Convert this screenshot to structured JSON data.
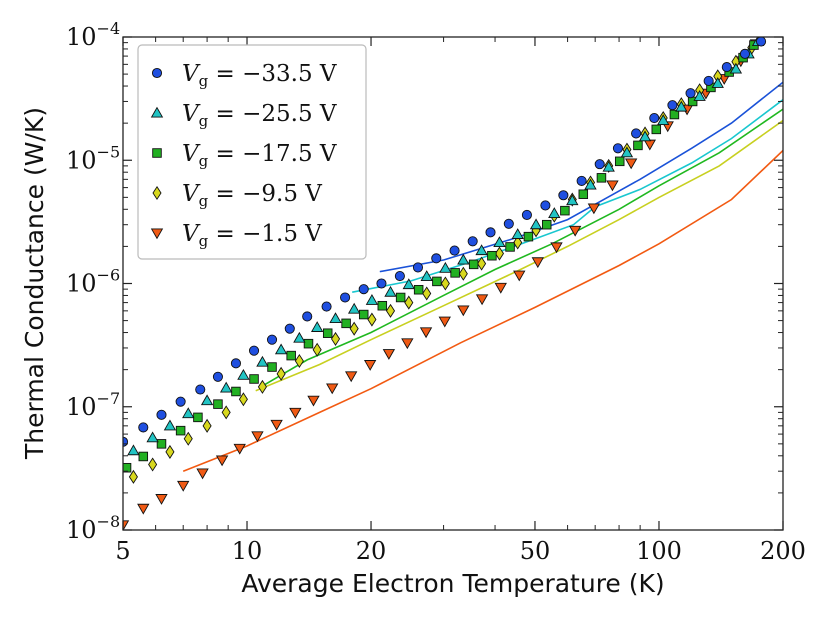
{
  "chart_data": {
    "type": "scatter",
    "xlabel": "Average Electron Temperature (K)",
    "ylabel": "Thermal Conductance (W/K)",
    "xscale": "log",
    "yscale": "log",
    "xlim": [
      5,
      200
    ],
    "ylim": [
      1e-08,
      0.0001
    ],
    "x_ticks": [
      {
        "value": 5,
        "label": "5"
      },
      {
        "value": 10,
        "label": "10"
      },
      {
        "value": 20,
        "label": "20"
      },
      {
        "value": 50,
        "label": "50"
      },
      {
        "value": 100,
        "label": "100"
      },
      {
        "value": 200,
        "label": "200"
      }
    ],
    "y_ticks": [
      {
        "value": 1e-08,
        "base": "10",
        "exp": "−8"
      },
      {
        "value": 1e-07,
        "base": "10",
        "exp": "−7"
      },
      {
        "value": 1e-06,
        "base": "10",
        "exp": "−6"
      },
      {
        "value": 1e-05,
        "base": "10",
        "exp": "−5"
      },
      {
        "value": 0.0001,
        "base": "10",
        "exp": "−4"
      }
    ],
    "legend_position": "top-left",
    "grid": false,
    "series": [
      {
        "name": "V_g = −33.5 V",
        "legend_value": "−33.5 V",
        "marker": "circle",
        "color": "#1f4fe0",
        "points": [
          [
            5,
            5.2e-08
          ],
          [
            5.6,
            6.8e-08
          ],
          [
            6.2,
            8.6e-08
          ],
          [
            6.9,
            1.1e-07
          ],
          [
            7.7,
            1.38e-07
          ],
          [
            8.5,
            1.75e-07
          ],
          [
            9.4,
            2.25e-07
          ],
          [
            10.4,
            2.85e-07
          ],
          [
            11.5,
            3.5e-07
          ],
          [
            12.7,
            4.3e-07
          ],
          [
            14.0,
            5.4e-07
          ],
          [
            15.6,
            6.5e-07
          ],
          [
            17.3,
            7.7e-07
          ],
          [
            19.2,
            9e-07
          ],
          [
            21.2,
            1e-06
          ],
          [
            23.5,
            1.15e-06
          ],
          [
            26.0,
            1.35e-06
          ],
          [
            28.8,
            1.6e-06
          ],
          [
            31.9,
            1.85e-06
          ],
          [
            35.3,
            2.2e-06
          ],
          [
            39.0,
            2.6e-06
          ],
          [
            43.2,
            3.05e-06
          ],
          [
            47.8,
            3.6e-06
          ],
          [
            53.0,
            4.3e-06
          ],
          [
            58.6,
            5.2e-06
          ],
          [
            64.9,
            6.8e-06
          ],
          [
            71.8,
            9.3e-06
          ],
          [
            79.5,
            1.25e-05
          ],
          [
            88.0,
            1.65e-05
          ],
          [
            97.4,
            2.2e-05
          ],
          [
            107.8,
            2.8e-05
          ],
          [
            119.3,
            3.5e-05
          ],
          [
            132.0,
            4.4e-05
          ],
          [
            146.1,
            5.7e-05
          ],
          [
            161.7,
            7.3e-05
          ],
          [
            176.9,
            9.2e-05
          ]
        ],
        "theory": [
          [
            21,
            1.25e-06
          ],
          [
            30,
            1.55e-06
          ],
          [
            45,
            2.35e-06
          ],
          [
            60,
            3.3e-06
          ],
          [
            75,
            5e-06
          ],
          [
            90,
            7e-06
          ],
          [
            120,
            1.25e-05
          ],
          [
            150,
            2e-05
          ],
          [
            200,
            4.3e-05
          ]
        ],
        "theory_color": "#1a52d8"
      },
      {
        "name": "V_g = −25.5 V",
        "legend_value": "−25.5 V",
        "marker": "triangle-up",
        "color": "#22c4c4",
        "points": [
          [
            5.3,
            4.4e-08
          ],
          [
            5.9,
            5.6e-08
          ],
          [
            6.5,
            7e-08
          ],
          [
            7.2,
            8.8e-08
          ],
          [
            8.0,
            1.12e-07
          ],
          [
            8.9,
            1.42e-07
          ],
          [
            9.8,
            1.8e-07
          ],
          [
            10.9,
            2.3e-07
          ],
          [
            12.1,
            2.9e-07
          ],
          [
            13.4,
            3.6e-07
          ],
          [
            14.8,
            4.4e-07
          ],
          [
            16.4,
            5.2e-07
          ],
          [
            18.2,
            6.2e-07
          ],
          [
            20.1,
            7.3e-07
          ],
          [
            22.3,
            8.5e-07
          ],
          [
            24.7,
            9.8e-07
          ],
          [
            27.3,
            1.14e-06
          ],
          [
            30.3,
            1.33e-06
          ],
          [
            33.5,
            1.55e-06
          ],
          [
            37.1,
            1.85e-06
          ],
          [
            41.0,
            2.15e-06
          ],
          [
            45.4,
            2.5e-06
          ],
          [
            50.3,
            3e-06
          ],
          [
            55.7,
            3.7e-06
          ],
          [
            61.6,
            4.7e-06
          ],
          [
            68.2,
            6.3e-06
          ],
          [
            75.5,
            8.8e-06
          ],
          [
            83.6,
            1.15e-05
          ],
          [
            92.5,
            1.55e-05
          ],
          [
            102.4,
            2.1e-05
          ],
          [
            113.3,
            2.7e-05
          ],
          [
            125.5,
            3.3e-05
          ],
          [
            138.9,
            4.2e-05
          ],
          [
            153.7,
            5.5e-05
          ],
          [
            165.0,
            7.3e-05
          ],
          [
            174.0,
            9.2e-05
          ]
        ],
        "theory": [
          [
            18,
            8.5e-07
          ],
          [
            25,
            1.05e-06
          ],
          [
            35,
            1.5e-06
          ],
          [
            50,
            2.3e-06
          ],
          [
            62,
            3e-06
          ],
          [
            70,
            4.2e-06
          ],
          [
            90,
            5.8e-06
          ],
          [
            120,
            9.5e-06
          ],
          [
            150,
            1.5e-05
          ],
          [
            200,
            3.1e-05
          ]
        ],
        "theory_color": "#19c7cf"
      },
      {
        "name": "V_g = −17.5 V",
        "legend_value": "−17.5 V",
        "marker": "square",
        "color": "#22b022",
        "points": [
          [
            5.1,
            3.2e-08
          ],
          [
            5.6,
            3.95e-08
          ],
          [
            6.2,
            5e-08
          ],
          [
            6.9,
            6.4e-08
          ],
          [
            7.6,
            8.2e-08
          ],
          [
            8.5,
            1.05e-07
          ],
          [
            9.4,
            1.33e-07
          ],
          [
            10.4,
            1.68e-07
          ],
          [
            11.5,
            2.1e-07
          ],
          [
            12.8,
            2.6e-07
          ],
          [
            14.1,
            3.25e-07
          ],
          [
            15.7,
            3.95e-07
          ],
          [
            17.4,
            4.75e-07
          ],
          [
            19.2,
            5.6e-07
          ],
          [
            21.3,
            6.6e-07
          ],
          [
            23.6,
            7.7e-07
          ],
          [
            26.1,
            8.9e-07
          ],
          [
            28.9,
            1.04e-06
          ],
          [
            32.0,
            1.22e-06
          ],
          [
            35.5,
            1.43e-06
          ],
          [
            39.3,
            1.68e-06
          ],
          [
            43.5,
            1.98e-06
          ],
          [
            48.2,
            2.4e-06
          ],
          [
            53.4,
            3e-06
          ],
          [
            59.1,
            3.9e-06
          ],
          [
            65.5,
            5.3e-06
          ],
          [
            72.5,
            7.2e-06
          ],
          [
            80.3,
            9.8e-06
          ],
          [
            88.9,
            1.32e-05
          ],
          [
            98.5,
            1.78e-05
          ],
          [
            109.0,
            2.35e-05
          ],
          [
            120.7,
            3e-05
          ],
          [
            133.7,
            3.9e-05
          ],
          [
            148.0,
            5.2e-05
          ],
          [
            160.0,
            6.8e-05
          ],
          [
            170.0,
            8.6e-05
          ]
        ],
        "theory": [
          [
            11,
            1.5e-07
          ],
          [
            14,
            2.4e-07
          ],
          [
            20,
            4e-07
          ],
          [
            30,
            8e-07
          ],
          [
            40,
            1.3e-06
          ],
          [
            55,
            2.1e-06
          ],
          [
            65,
            2.8e-06
          ],
          [
            80,
            4e-06
          ],
          [
            100,
            6.2e-06
          ],
          [
            140,
            1.15e-05
          ],
          [
            200,
            2.6e-05
          ]
        ],
        "theory_color": "#20b820"
      },
      {
        "name": "V_g = −9.5 V",
        "legend_value": "−9.5 V",
        "marker": "diamond",
        "color": "#d8d81e",
        "points": [
          [
            5.3,
            2.7e-08
          ],
          [
            5.9,
            3.4e-08
          ],
          [
            6.5,
            4.3e-08
          ],
          [
            7.2,
            5.5e-08
          ],
          [
            8.0,
            7e-08
          ],
          [
            8.9,
            9e-08
          ],
          [
            9.8,
            1.15e-07
          ],
          [
            10.9,
            1.45e-07
          ],
          [
            12.1,
            1.85e-07
          ],
          [
            13.4,
            2.35e-07
          ],
          [
            14.8,
            2.9e-07
          ],
          [
            16.4,
            3.55e-07
          ],
          [
            18.2,
            4.3e-07
          ],
          [
            20.1,
            5.1e-07
          ],
          [
            22.3,
            6e-07
          ],
          [
            24.7,
            7e-07
          ],
          [
            27.3,
            8.3e-07
          ],
          [
            30.3,
            1e-06
          ],
          [
            33.5,
            1.2e-06
          ],
          [
            37.1,
            1.45e-06
          ],
          [
            41.0,
            1.75e-06
          ],
          [
            45.4,
            2.15e-06
          ],
          [
            50.3,
            2.7e-06
          ],
          [
            55.7,
            3.55e-06
          ],
          [
            61.6,
            4.8e-06
          ],
          [
            68.2,
            6.6e-06
          ],
          [
            75.5,
            9e-06
          ],
          [
            83.6,
            1.22e-05
          ],
          [
            92.5,
            1.65e-05
          ],
          [
            102.4,
            2.2e-05
          ],
          [
            113.3,
            2.85e-05
          ],
          [
            125.5,
            3.7e-05
          ],
          [
            138.9,
            4.8e-05
          ],
          [
            153.7,
            6.3e-05
          ],
          [
            168.0,
            8.2e-05
          ]
        ],
        "theory": [
          [
            10.5,
            1.35e-07
          ],
          [
            15,
            2.2e-07
          ],
          [
            20,
            3.5e-07
          ],
          [
            30,
            6.6e-07
          ],
          [
            45,
            1.25e-06
          ],
          [
            60,
            2e-06
          ],
          [
            80,
            3.3e-06
          ],
          [
            100,
            5e-06
          ],
          [
            140,
            9e-06
          ],
          [
            200,
            2.1e-05
          ]
        ],
        "theory_color": "#c8d020"
      },
      {
        "name": "V_g = −1.5 V",
        "legend_value": "−1.5 V",
        "marker": "triangle-down",
        "color": "#f05a14",
        "points": [
          [
            5.0,
            1.1e-08
          ],
          [
            5.6,
            1.5e-08
          ],
          [
            6.2,
            1.8e-08
          ],
          [
            7.0,
            2.3e-08
          ],
          [
            7.8,
            2.9e-08
          ],
          [
            8.7,
            3.7e-08
          ],
          [
            9.6,
            4.6e-08
          ],
          [
            10.6,
            5.8e-08
          ],
          [
            11.8,
            7.2e-08
          ],
          [
            13.1,
            9e-08
          ],
          [
            14.5,
            1.13e-07
          ],
          [
            16.1,
            1.42e-07
          ],
          [
            17.9,
            1.78e-07
          ],
          [
            19.9,
            2.2e-07
          ],
          [
            22.1,
            2.7e-07
          ],
          [
            24.5,
            3.3e-07
          ],
          [
            27.2,
            4.05e-07
          ],
          [
            30.2,
            4.95e-07
          ],
          [
            33.5,
            6.1e-07
          ],
          [
            37.2,
            7.5e-07
          ],
          [
            41.3,
            9.3e-07
          ],
          [
            45.8,
            1.17e-06
          ],
          [
            50.8,
            1.5e-06
          ],
          [
            56.4,
            1.98e-06
          ],
          [
            62.6,
            2.7e-06
          ],
          [
            69.5,
            4.1e-06
          ],
          [
            77.1,
            6.3e-06
          ],
          [
            85.6,
            9.5e-06
          ],
          [
            95.0,
            1.35e-05
          ],
          [
            105.0,
            1.9e-05
          ],
          [
            117.0,
            2.6e-05
          ],
          [
            130.0,
            3.5e-05
          ],
          [
            144.0,
            4.6e-05
          ],
          [
            158.0,
            6.4e-05
          ],
          [
            172.0,
            8.8e-05
          ]
        ],
        "theory": [
          [
            7,
            3e-08
          ],
          [
            10,
            4.8e-08
          ],
          [
            15,
            9e-08
          ],
          [
            20,
            1.4e-07
          ],
          [
            33,
            3.3e-07
          ],
          [
            50,
            6.4e-07
          ],
          [
            80,
            1.4e-06
          ],
          [
            100,
            2.1e-06
          ],
          [
            150,
            4.8e-06
          ],
          [
            200,
            1.2e-05
          ]
        ],
        "theory_color": "#f25a12"
      }
    ]
  }
}
